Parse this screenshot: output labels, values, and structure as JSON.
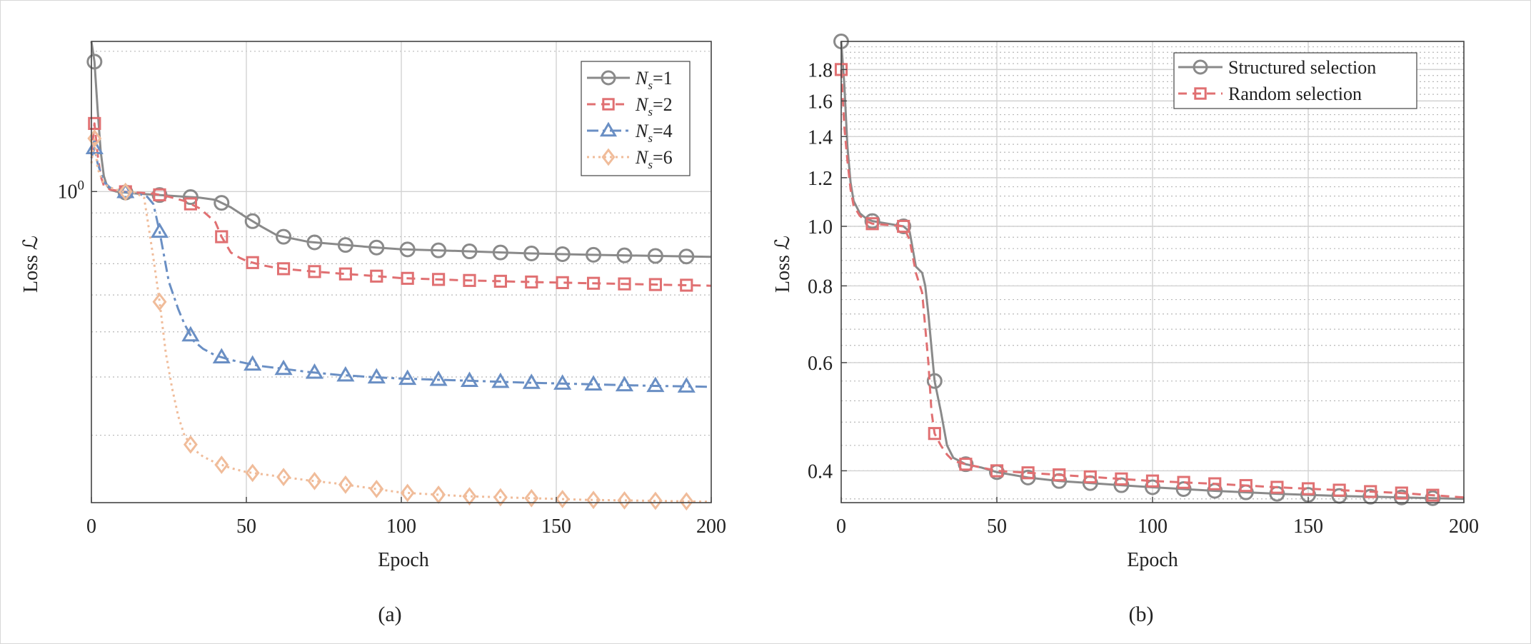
{
  "chart_data": [
    {
      "type": "line",
      "panel_label": "(a)",
      "xlabel": "Epoch",
      "ylabel": "Loss ℒ",
      "yscale": "log",
      "xlim": [
        0,
        200
      ],
      "ylim": [
        0.215,
        2.1
      ],
      "xticks": [
        0,
        50,
        100,
        150,
        200
      ],
      "xtick_labels": [
        "0",
        "50",
        "100",
        "150",
        "200"
      ],
      "yticks": [
        1
      ],
      "ytick_labels": [
        "10⁰"
      ],
      "legend": "top-right",
      "grid": true,
      "series": [
        {
          "name": "Ns=1",
          "legend_main": "N",
          "legend_sub": "s",
          "legend_rest": "=1",
          "color": "#8a8a8a",
          "dash": "",
          "marker": "circle",
          "x": [
            0,
            1,
            2,
            3,
            4,
            5,
            6,
            8,
            10,
            15,
            20,
            30,
            35,
            40,
            45,
            50,
            55,
            60,
            70,
            80,
            90,
            100,
            120,
            140,
            160,
            180,
            200
          ],
          "y": [
            2.1,
            1.9,
            1.5,
            1.22,
            1.08,
            1.03,
            1.01,
            1.0,
            0.997,
            0.99,
            0.985,
            0.975,
            0.97,
            0.96,
            0.925,
            0.88,
            0.84,
            0.805,
            0.78,
            0.77,
            0.76,
            0.752,
            0.745,
            0.737,
            0.732,
            0.728,
            0.724
          ]
        },
        {
          "name": "Ns=2",
          "legend_main": "N",
          "legend_sub": "s",
          "legend_rest": "=2",
          "color": "#e07072",
          "dash": "12,8",
          "marker": "square",
          "x": [
            0,
            1,
            2,
            3,
            4,
            6,
            8,
            10,
            15,
            20,
            25,
            30,
            35,
            40,
            42,
            45,
            48,
            50,
            55,
            60,
            70,
            80,
            90,
            100,
            120,
            140,
            160,
            180,
            200
          ],
          "y": [
            1.2,
            1.4,
            1.2,
            1.08,
            1.03,
            1.01,
            1.005,
            1.0,
            0.995,
            0.99,
            0.975,
            0.955,
            0.92,
            0.86,
            0.8,
            0.74,
            0.72,
            0.71,
            0.695,
            0.685,
            0.675,
            0.667,
            0.66,
            0.652,
            0.645,
            0.64,
            0.636,
            0.632,
            0.628
          ]
        },
        {
          "name": "Ns=4",
          "legend_main": "N",
          "legend_sub": "s",
          "legend_rest": "=4",
          "color": "#6a8fc4",
          "dash": "16,6,4,6",
          "marker": "triangle",
          "x": [
            0,
            1,
            2,
            4,
            6,
            8,
            10,
            15,
            18,
            20,
            22,
            25,
            28,
            30,
            33,
            36,
            40,
            45,
            50,
            55,
            60,
            70,
            80,
            90,
            100,
            120,
            140,
            160,
            180,
            200
          ],
          "y": [
            1.18,
            1.24,
            1.15,
            1.05,
            1.02,
            1.01,
            1.0,
            0.99,
            0.975,
            0.94,
            0.82,
            0.64,
            0.56,
            0.52,
            0.478,
            0.46,
            0.445,
            0.435,
            0.428,
            0.422,
            0.418,
            0.41,
            0.404,
            0.4,
            0.397,
            0.393,
            0.389,
            0.386,
            0.383,
            0.381
          ]
        },
        {
          "name": "Ns=6",
          "legend_main": "N",
          "legend_sub": "s",
          "legend_rest": "=6",
          "color": "#f0bc9a",
          "dash": "3,5",
          "marker": "diamond",
          "x": [
            0,
            1,
            2,
            4,
            6,
            8,
            10,
            14,
            17,
            18,
            20,
            22,
            24,
            26,
            28,
            30,
            33,
            36,
            40,
            45,
            50,
            60,
            70,
            80,
            90,
            100,
            120,
            140,
            160,
            180,
            200
          ],
          "y": [
            1.15,
            1.3,
            1.12,
            1.04,
            1.02,
            1.01,
            1.0,
            0.995,
            0.97,
            0.88,
            0.72,
            0.58,
            0.45,
            0.38,
            0.33,
            0.3,
            0.28,
            0.27,
            0.262,
            0.255,
            0.25,
            0.245,
            0.24,
            0.236,
            0.231,
            0.226,
            0.222,
            0.22,
            0.218,
            0.217,
            0.216
          ]
        }
      ]
    },
    {
      "type": "line",
      "panel_label": "(b)",
      "xlabel": "Epoch",
      "ylabel": "Loss ℒ",
      "yscale": "log",
      "xlim": [
        0,
        200
      ],
      "ylim": [
        0.355,
        2.0
      ],
      "xticks": [
        0,
        50,
        100,
        150,
        200
      ],
      "xtick_labels": [
        "0",
        "50",
        "100",
        "150",
        "200"
      ],
      "yticks": [
        0.4,
        0.6,
        0.8,
        1.0,
        1.2,
        1.4,
        1.6,
        1.8
      ],
      "ytick_labels": [
        "0.4",
        "0.6",
        "0.8",
        "1.0",
        "1.2",
        "1.4",
        "1.6",
        "1.8"
      ],
      "legend": "top-right",
      "grid": true,
      "series": [
        {
          "name": "Structured selection",
          "color": "#8a8a8a",
          "dash": "",
          "marker": "circle",
          "x": [
            0,
            1,
            2,
            3,
            4,
            6,
            8,
            10,
            15,
            20,
            22,
            24,
            26,
            27,
            28,
            30,
            32,
            34,
            36,
            40,
            45,
            50,
            60,
            70,
            80,
            90,
            100,
            120,
            140,
            160,
            180,
            200
          ],
          "y": [
            2.0,
            1.7,
            1.35,
            1.18,
            1.1,
            1.05,
            1.03,
            1.02,
            1.01,
            1.0,
            0.98,
            0.86,
            0.84,
            0.8,
            0.72,
            0.56,
            0.5,
            0.44,
            0.42,
            0.41,
            0.405,
            0.398,
            0.39,
            0.385,
            0.382,
            0.379,
            0.376,
            0.371,
            0.367,
            0.364,
            0.362,
            0.36
          ]
        },
        {
          "name": "Random selection",
          "color": "#e07072",
          "dash": "12,8",
          "marker": "square",
          "x": [
            0,
            1,
            2,
            3,
            4,
            6,
            8,
            10,
            15,
            20,
            22,
            24,
            26,
            28,
            29,
            30,
            32,
            34,
            36,
            40,
            45,
            50,
            60,
            70,
            80,
            90,
            100,
            120,
            140,
            160,
            180,
            200
          ],
          "y": [
            1.8,
            1.45,
            1.28,
            1.15,
            1.08,
            1.04,
            1.02,
            1.01,
            1.005,
            1.0,
            0.95,
            0.84,
            0.78,
            0.6,
            0.5,
            0.46,
            0.44,
            0.425,
            0.415,
            0.41,
            0.405,
            0.4,
            0.397,
            0.394,
            0.391,
            0.388,
            0.385,
            0.381,
            0.376,
            0.372,
            0.368,
            0.362
          ]
        }
      ]
    }
  ]
}
